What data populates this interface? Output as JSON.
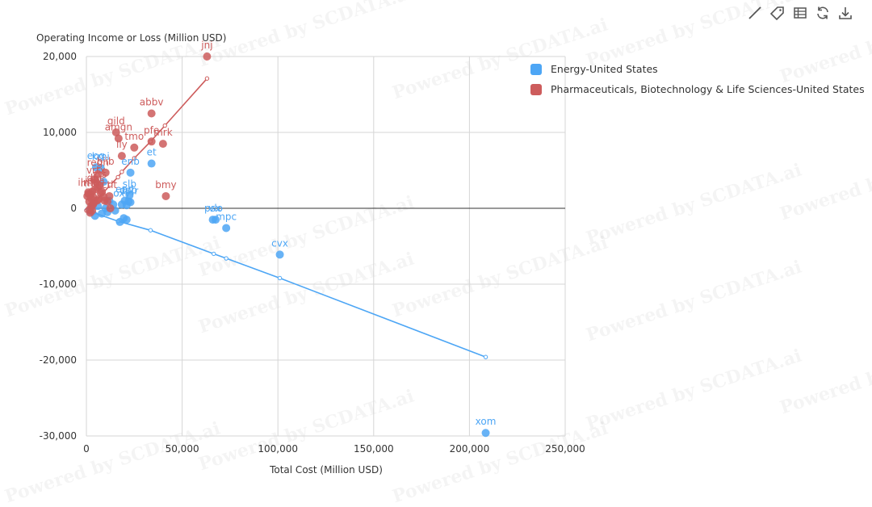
{
  "toolbar": [
    {
      "name": "line-tool-icon"
    },
    {
      "name": "tag-icon"
    },
    {
      "name": "table-icon"
    },
    {
      "name": "refresh-icon"
    },
    {
      "name": "download-icon"
    }
  ],
  "watermark": "Powered by SCDATA.ai",
  "chart_data": {
    "type": "scatter",
    "ylabel": "Operating Income or Loss (Million USD)",
    "xlabel": "Total Cost (Million USD)",
    "xlim": [
      0,
      250000
    ],
    "ylim": [
      -30000,
      20000
    ],
    "x_ticks": [
      0,
      50000,
      100000,
      150000,
      200000,
      250000
    ],
    "x_tick_labels": [
      "0",
      "50,000",
      "100,000",
      "150,000",
      "200,000",
      "250,000"
    ],
    "y_ticks": [
      -30000,
      -20000,
      -10000,
      0,
      10000,
      20000
    ],
    "y_tick_labels": [
      "-30,000",
      "-20,000",
      "-10,000",
      "0",
      "10,000",
      "20,000"
    ],
    "grid": true,
    "legend_position": "top-right",
    "series": [
      {
        "name": "Energy-United States",
        "color": "#4da6f5",
        "points": [
          {
            "x": 208500,
            "y": -29600,
            "label": "xom"
          },
          {
            "x": 101000,
            "y": -6100,
            "label": "cvx"
          },
          {
            "x": 73000,
            "y": -2600,
            "label": "mpc"
          },
          {
            "x": 66000,
            "y": -1500,
            "label": "psx"
          },
          {
            "x": 67500,
            "y": -1500,
            "label": "vlo"
          },
          {
            "x": 34000,
            "y": 5900,
            "label": "et"
          },
          {
            "x": 23000,
            "y": 4700,
            "label": "enb"
          },
          {
            "x": 22500,
            "y": 1700,
            "label": "slb"
          },
          {
            "x": 22000,
            "y": 900,
            "label": "cop"
          },
          {
            "x": 23000,
            "y": 800,
            "label": "bkr"
          },
          {
            "x": 20000,
            "y": 1000,
            "label": "epd"
          },
          {
            "x": 18500,
            "y": 500,
            "label": "oxy"
          },
          {
            "x": 21000,
            "y": 400,
            "label": ""
          },
          {
            "x": 17500,
            "y": -1800,
            "label": ""
          },
          {
            "x": 19500,
            "y": -1300,
            "label": ""
          },
          {
            "x": 21000,
            "y": -1500,
            "label": ""
          },
          {
            "x": 11000,
            "y": -500,
            "label": ""
          },
          {
            "x": 8000,
            "y": -700,
            "label": ""
          },
          {
            "x": 4500,
            "y": -1000,
            "label": ""
          },
          {
            "x": 6000,
            "y": 300,
            "label": ""
          },
          {
            "x": 9000,
            "y": 3500,
            "label": ""
          },
          {
            "x": 7500,
            "y": 5300,
            "label": "kmi"
          },
          {
            "x": 5000,
            "y": 5400,
            "label": "eog"
          },
          {
            "x": 12000,
            "y": 1000,
            "label": ""
          },
          {
            "x": 10000,
            "y": 0,
            "label": ""
          },
          {
            "x": 14000,
            "y": 500,
            "label": ""
          },
          {
            "x": 15000,
            "y": -300,
            "label": ""
          },
          {
            "x": 3000,
            "y": 200,
            "label": ""
          },
          {
            "x": 2000,
            "y": -400,
            "label": ""
          }
        ],
        "trend": [
          [
            0,
            -250
          ],
          [
            4000,
            -600
          ],
          [
            16500,
            -1700
          ],
          [
            33500,
            -2900
          ],
          [
            66500,
            -6000
          ],
          [
            73000,
            -6600
          ],
          [
            101000,
            -9200
          ],
          [
            208500,
            -19600
          ]
        ]
      },
      {
        "name": "Pharmaceuticals, Biotechnology & Life Sciences-United States",
        "color": "#cd5c5c",
        "points": [
          {
            "x": 63000,
            "y": 20000,
            "label": "jnj"
          },
          {
            "x": 34000,
            "y": 12500,
            "label": "abbv"
          },
          {
            "x": 15500,
            "y": 10000,
            "label": "gild"
          },
          {
            "x": 16800,
            "y": 9200,
            "label": "amgn"
          },
          {
            "x": 34000,
            "y": 8800,
            "label": "pfe"
          },
          {
            "x": 40000,
            "y": 8500,
            "label": "mrk"
          },
          {
            "x": 25000,
            "y": 8000,
            "label": "tmo"
          },
          {
            "x": 18500,
            "y": 6900,
            "label": "lly"
          },
          {
            "x": 41500,
            "y": 1600,
            "label": "bmy"
          },
          {
            "x": 10000,
            "y": 4700,
            "label": "biib"
          },
          {
            "x": 6000,
            "y": 4500,
            "label": "regn"
          },
          {
            "x": 5000,
            "y": 3500,
            "label": "vrtx"
          },
          {
            "x": 7000,
            "y": 3000,
            "label": "zts"
          },
          {
            "x": 4500,
            "y": 2500,
            "label": "dhr"
          },
          {
            "x": 8000,
            "y": 2200,
            "label": "a"
          },
          {
            "x": 3000,
            "y": 2200,
            "label": "iqv"
          },
          {
            "x": 2000,
            "y": 1800,
            "label": "mtd"
          },
          {
            "x": 1000,
            "y": 1900,
            "label": "ilmn"
          },
          {
            "x": 12000,
            "y": 1600,
            "label": "ctlt"
          },
          {
            "x": 11000,
            "y": 900,
            "label": ""
          },
          {
            "x": 12500,
            "y": 0,
            "label": ""
          },
          {
            "x": 9000,
            "y": 1500,
            "label": ""
          },
          {
            "x": 6500,
            "y": 1200,
            "label": ""
          },
          {
            "x": 5500,
            "y": 1000,
            "label": ""
          },
          {
            "x": 4000,
            "y": 800,
            "label": ""
          },
          {
            "x": 3500,
            "y": 500,
            "label": ""
          },
          {
            "x": 2500,
            "y": 300,
            "label": ""
          },
          {
            "x": 1500,
            "y": 900,
            "label": ""
          },
          {
            "x": 500,
            "y": 1600,
            "label": ""
          },
          {
            "x": 1500,
            "y": -200,
            "label": ""
          },
          {
            "x": 2000,
            "y": -600,
            "label": ""
          },
          {
            "x": 3000,
            "y": -300,
            "label": ""
          },
          {
            "x": 2500,
            "y": 1300,
            "label": ""
          },
          {
            "x": 6000,
            "y": 2800,
            "label": ""
          },
          {
            "x": 4000,
            "y": 3800,
            "label": ""
          },
          {
            "x": 7500,
            "y": 2000,
            "label": ""
          },
          {
            "x": 3500,
            "y": 1500,
            "label": ""
          },
          {
            "x": 1000,
            "y": 2100,
            "label": ""
          },
          {
            "x": 9500,
            "y": 1000,
            "label": ""
          }
        ],
        "trend": [
          [
            0,
            -300
          ],
          [
            2000,
            200
          ],
          [
            5000,
            1000
          ],
          [
            9000,
            2100
          ],
          [
            12500,
            3100
          ],
          [
            16500,
            4100
          ],
          [
            18500,
            4800
          ],
          [
            25000,
            6600
          ],
          [
            33500,
            8800
          ],
          [
            41000,
            10900
          ],
          [
            63000,
            17100
          ]
        ]
      }
    ]
  }
}
